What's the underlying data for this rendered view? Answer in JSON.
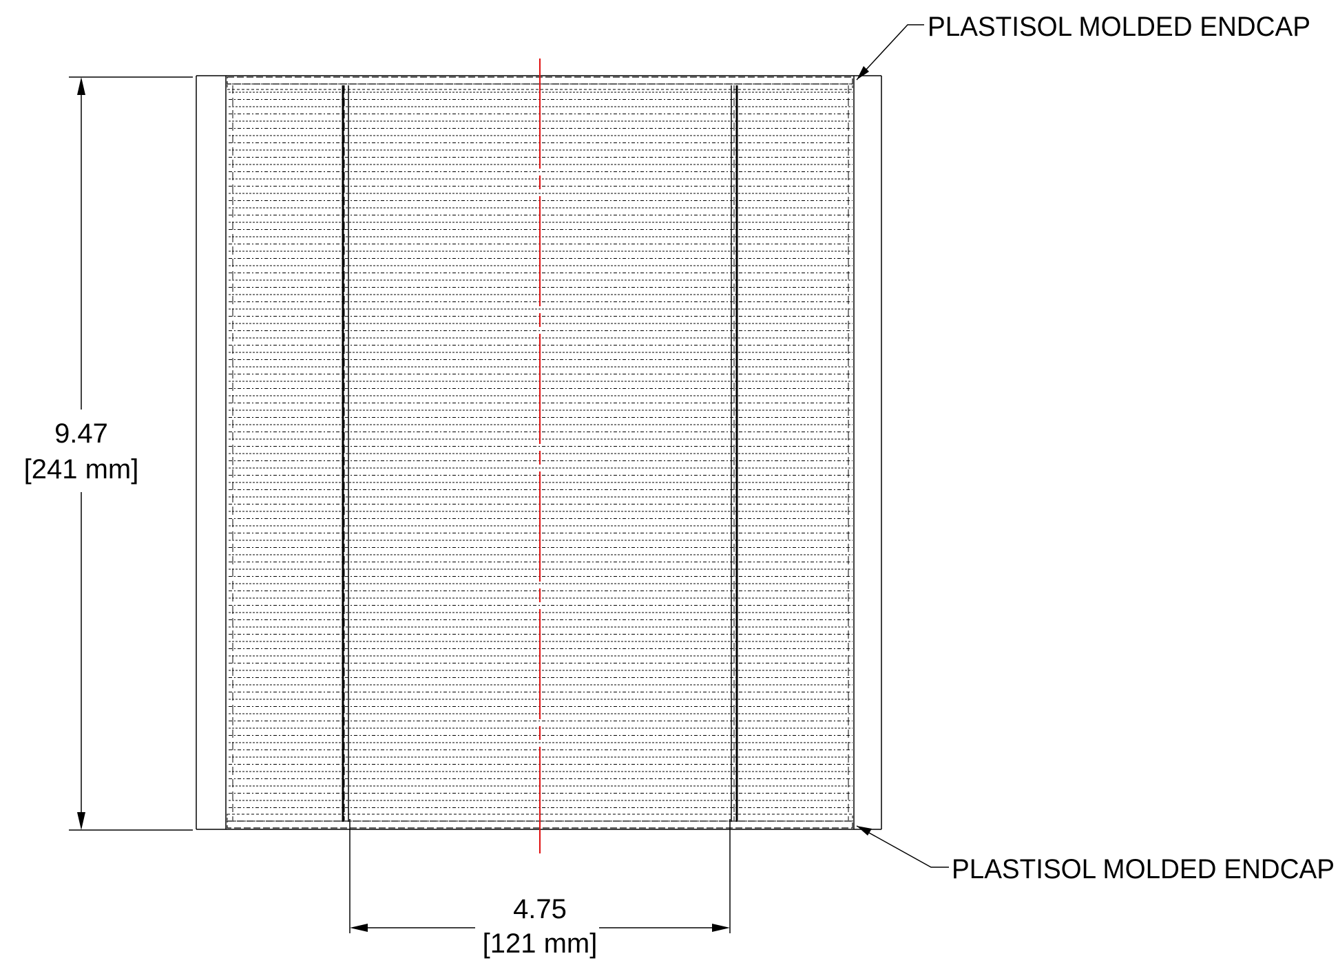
{
  "callouts": {
    "top_endcap": "PLASTISOL MOLDED ENDCAP",
    "bottom_endcap": "PLASTISOL MOLDED ENDCAP"
  },
  "dimensions": {
    "height": {
      "value": "9.47",
      "metric": "[241 mm]"
    },
    "inner_width": {
      "value": "4.75",
      "metric": "[121 mm]"
    }
  },
  "colors": {
    "line": "#000000",
    "centerline": "#e01010",
    "background": "#ffffff"
  }
}
